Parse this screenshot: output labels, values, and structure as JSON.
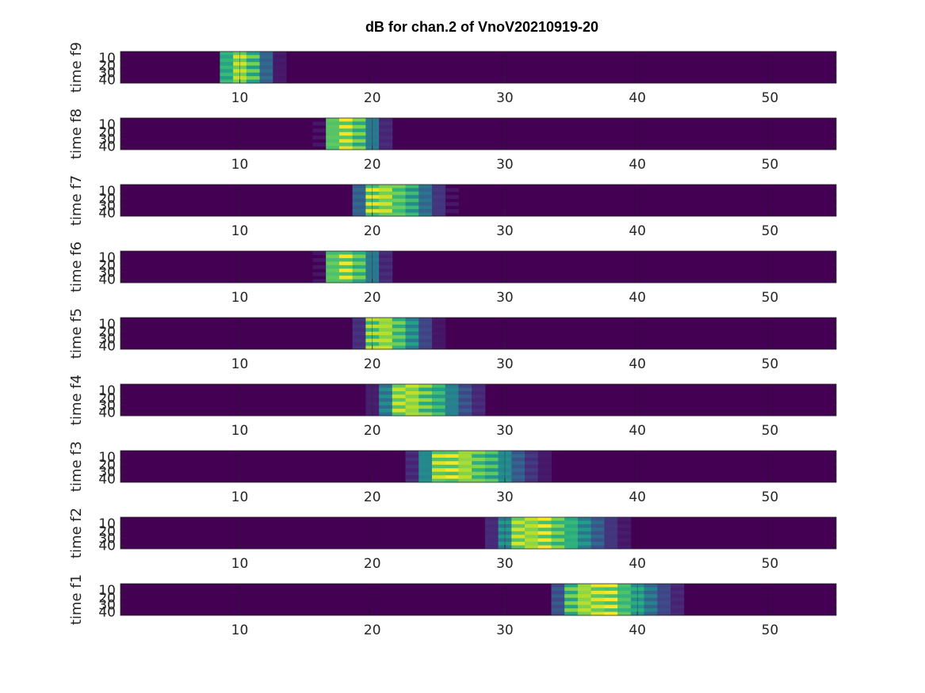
{
  "chart_data": {
    "type": "heatmap",
    "title": "dB for chan.2 of VnoV20210919-20",
    "colormap": "viridis",
    "grid": true,
    "xlim": [
      1,
      55
    ],
    "ylim": [
      1,
      45
    ],
    "x_ticks": [
      "10",
      "20",
      "30",
      "40",
      "50"
    ],
    "y_ticks": [
      "10",
      "20",
      "30",
      "40"
    ],
    "colors": {
      "background": "#440154",
      "axis": "#262626",
      "grid": "#262626"
    },
    "panels": [
      {
        "ylabel": "time f9",
        "peak_x": 10,
        "width": 0.6,
        "spread": 1.2
      },
      {
        "ylabel": "time f8",
        "peak_x": 18,
        "width": 0.7,
        "spread": 1.3
      },
      {
        "ylabel": "time f7",
        "peak_x": 21,
        "width": 0.8,
        "spread": 2.0
      },
      {
        "ylabel": "time f6",
        "peak_x": 18,
        "width": 0.7,
        "spread": 1.3
      },
      {
        "ylabel": "time f5",
        "peak_x": 21,
        "width": 0.7,
        "spread": 1.6
      },
      {
        "ylabel": "time f4",
        "peak_x": 23,
        "width": 0.8,
        "spread": 2.4
      },
      {
        "ylabel": "time f3",
        "peak_x": 26.5,
        "width": 1.3,
        "spread": 2.6
      },
      {
        "ylabel": "time f2",
        "peak_x": 32.5,
        "width": 1.3,
        "spread": 2.6
      },
      {
        "ylabel": "time f1",
        "peak_x": 37,
        "width": 1.3,
        "spread": 2.6
      }
    ]
  }
}
